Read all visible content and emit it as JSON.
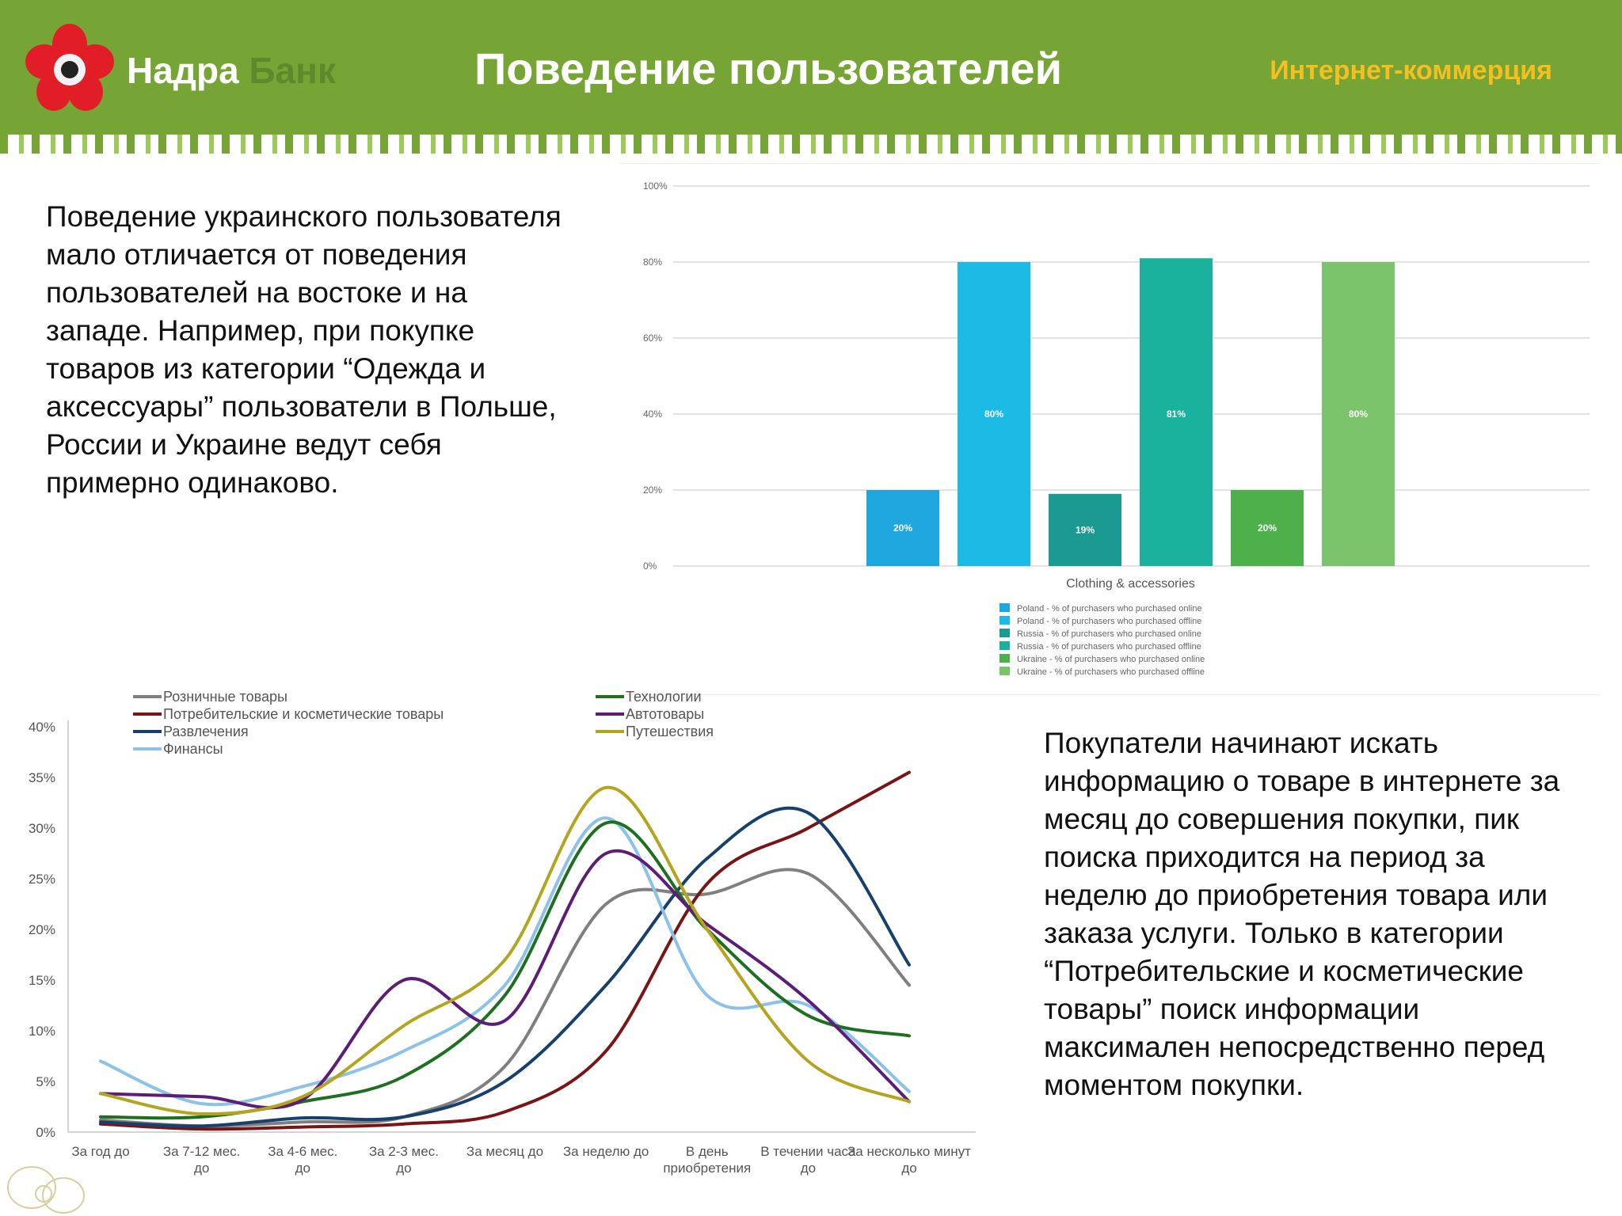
{
  "header": {
    "logo_text_main": "Надра",
    "logo_text_dim": "Банк",
    "title": "Поведение пользователей",
    "section": "Интернет-коммерция"
  },
  "text_block_1": "Поведение украинского пользователя мало отличается от поведения пользователей на востоке и на западе. Например, при покупке товаров из категории “Одежда и аксессуары” пользователи в Польше, России и Украине ведут себя примерно одинаково.",
  "text_block_2": "Покупатели начинают искать информацию о товаре в интернете за месяц до совершения покупки, пик поиска приходится на период за неделю до приобретения товара или заказа услуги. Только в категории “Потребительские и косметические товары” поиск информации максимален непосредственно перед моментом покупки.",
  "chart_data": [
    {
      "type": "bar",
      "xlabel": "Clothing & accessories",
      "ylim": [
        0,
        100
      ],
      "y_ticks": [
        "0%",
        "20%",
        "40%",
        "60%",
        "80%",
        "100%"
      ],
      "categories": [
        "Poland - % of purchasers who purchased online",
        "Poland - % of purchasers who purchased offline",
        "Russia - % of purchasers who purchased online",
        "Russia - % of purchasers who purchased offline",
        "Ukraine - % of purchasers who purchased online",
        "Ukraine - % of purchasers who purchased offline"
      ],
      "values": [
        20,
        80,
        19,
        81,
        20,
        80
      ],
      "value_labels": [
        "20%",
        "80%",
        "19%",
        "81%",
        "20%",
        "80%"
      ],
      "colors": [
        "#1ea7de",
        "#1bbbe6",
        "#1a9a90",
        "#1ab29c",
        "#4db04a",
        "#7cc46b"
      ],
      "grid": true,
      "legend_position": "bottom"
    },
    {
      "type": "line",
      "ylim": [
        0,
        40
      ],
      "y_ticks": [
        "0%",
        "5%",
        "10%",
        "15%",
        "20%",
        "25%",
        "30%",
        "35%",
        "40%"
      ],
      "categories": [
        "За год до",
        "За 7-12 мес. до",
        "За 4-6 мес. до",
        "За 2-3 мес. до",
        "За месяц до",
        "За неделю до",
        "В день приобретения",
        "В течении часа до",
        "За несколько минут до"
      ],
      "series": [
        {
          "name": "Розничные товары",
          "color": "#7f7f7f",
          "values": [
            1.2,
            0.6,
            1.0,
            1.5,
            6.5,
            22.5,
            23.5,
            25.5,
            14.5
          ]
        },
        {
          "name": "Потребительские и косметические товары",
          "color": "#7a1515",
          "values": [
            0.8,
            0.3,
            0.5,
            0.8,
            2.0,
            8.0,
            24.5,
            30.0,
            35.5
          ]
        },
        {
          "name": "Развлечения",
          "color": "#17406c",
          "values": [
            1.0,
            0.6,
            1.4,
            1.5,
            5.0,
            14.5,
            27.0,
            31.5,
            16.5
          ]
        },
        {
          "name": "Финансы",
          "color": "#8cc1e8",
          "values": [
            7.0,
            2.8,
            4.5,
            8.0,
            14.5,
            31.0,
            13.5,
            12.5,
            4.0
          ]
        },
        {
          "name": "Технологии",
          "color": "#1f6f21",
          "values": [
            1.5,
            1.5,
            3.0,
            5.5,
            13.5,
            30.5,
            20.0,
            11.5,
            9.5
          ]
        },
        {
          "name": "Автотовары",
          "color": "#5b1d76",
          "values": [
            3.8,
            3.5,
            3.2,
            15.0,
            11.0,
            27.5,
            20.5,
            13.0,
            3.0
          ]
        },
        {
          "name": "Путешествия",
          "color": "#b3a520",
          "values": [
            3.8,
            1.8,
            3.5,
            10.5,
            17.0,
            34.0,
            20.0,
            7.0,
            3.0
          ]
        }
      ],
      "legend_position": "top"
    }
  ]
}
